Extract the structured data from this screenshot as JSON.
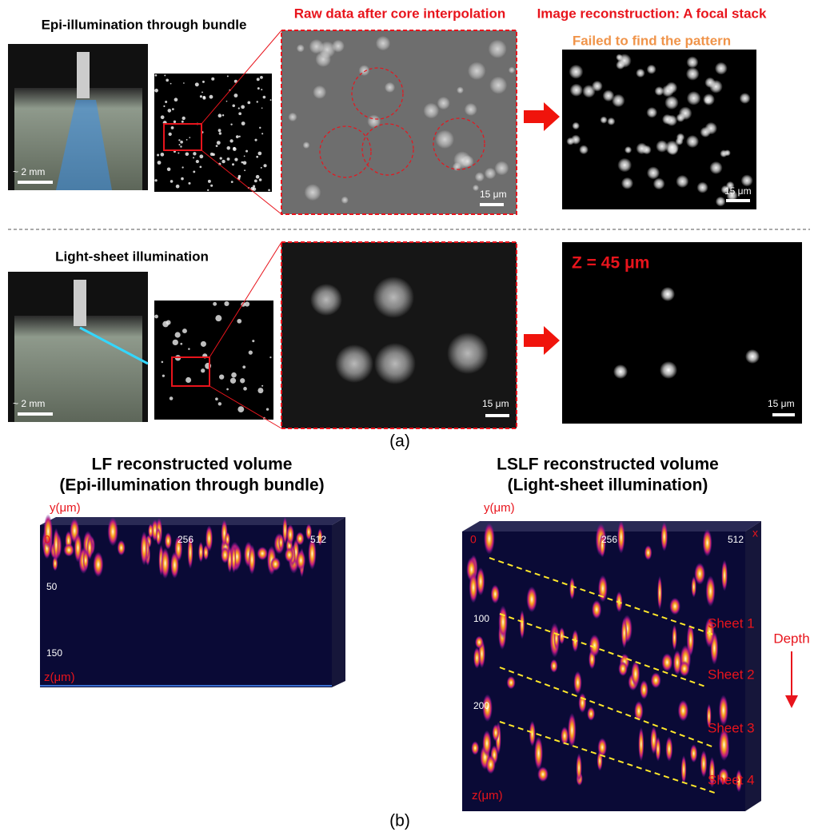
{
  "panel_a": {
    "label": "(a)",
    "rows": [
      {
        "title": "Epi-illumination through bundle",
        "photo_scale": "~ 2 mm",
        "raw_title": "Raw data after core interpolation",
        "raw_scale": "15 μm",
        "recon_title": "Image reconstruction: A focal stack",
        "recon_note": "Failed to find the pattern",
        "recon_scale": "15 μm"
      },
      {
        "title": "Light-sheet illumination",
        "photo_scale": "~ 2 mm",
        "raw_scale": "15 μm",
        "recon_label": "Z = 45 μm",
        "recon_scale": "15 μm"
      }
    ]
  },
  "panel_b": {
    "label": "(b)",
    "volumes": [
      {
        "title": "LF reconstructed volume",
        "subtitle": "(Epi-illumination through bundle)",
        "y_axis": "y(μm)",
        "z_axis": "z(μm)",
        "top_ticks": [
          "0",
          "256",
          "512"
        ],
        "depth_ticks": [
          "50",
          "150"
        ]
      },
      {
        "title": "LSLF reconstructed volume",
        "subtitle": "(Light-sheet illumination)",
        "y_axis": "y(μm)",
        "z_axis": "z(μm)",
        "x_axis": "x",
        "top_ticks": [
          "0",
          "256",
          "512"
        ],
        "depth_ticks": [
          "100",
          "200"
        ],
        "sheets": [
          "Sheet 1",
          "Sheet 2",
          "Sheet 3",
          "Sheet 4"
        ],
        "depth_label": "Depth"
      }
    ]
  }
}
